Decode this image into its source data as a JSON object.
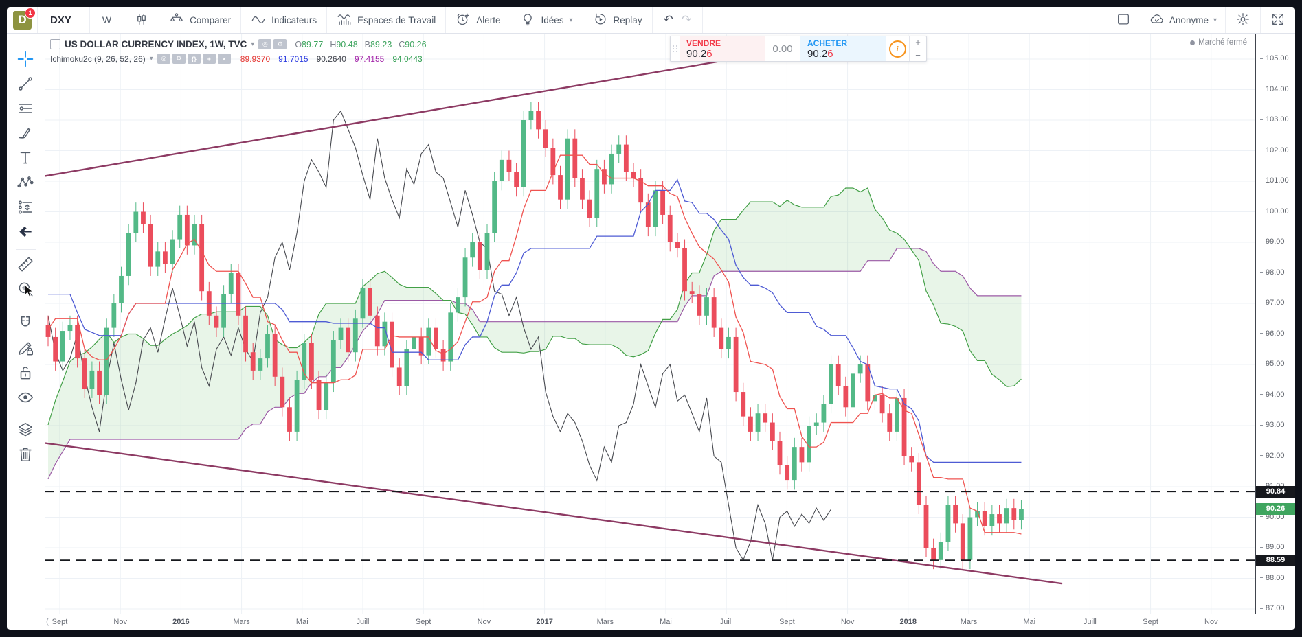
{
  "app": {
    "market_status": "Marché fermé",
    "topbar": {
      "logo_letter": "D",
      "notification_count": "1",
      "symbol": "DXY",
      "interval": "W",
      "menu": [
        {
          "id": "compare",
          "icon": "compare",
          "label": "Comparer"
        },
        {
          "id": "indicators",
          "icon": "indicators",
          "label": "Indicateurs"
        },
        {
          "id": "workspaces",
          "icon": "workspace",
          "label": "Espaces de Travail"
        },
        {
          "id": "alert",
          "icon": "alert",
          "label": "Alerte"
        },
        {
          "id": "ideas",
          "icon": "bulb",
          "label": "Idées",
          "chevron": true
        },
        {
          "id": "replay",
          "icon": "replay",
          "label": "Replay"
        }
      ],
      "undo_glyph": "↶",
      "redo_glyph": "↷",
      "account_name": "Anonyme",
      "account_chevron": "▾"
    },
    "left_toolbar": [
      {
        "id": "cursor-tool",
        "icon": "crosshair",
        "active": true
      },
      {
        "id": "trend-line-tool",
        "icon": "trend"
      },
      {
        "id": "gann-fib-tool",
        "icon": "fib"
      },
      {
        "id": "brush-tool",
        "icon": "brush"
      },
      {
        "id": "text-tool",
        "icon": "text"
      },
      {
        "id": "pattern-tool",
        "icon": "pattern"
      },
      {
        "id": "forecast-tool",
        "icon": "forecast"
      },
      {
        "id": "back-tool",
        "icon": "backarrow",
        "divider_after": true
      },
      {
        "id": "measure-tool",
        "icon": "ruler"
      },
      {
        "id": "zoom-in-tool",
        "icon": "zoomin",
        "gap_after": true
      },
      {
        "id": "magnet-tool",
        "icon": "magnet"
      },
      {
        "id": "drawing-lock-tool",
        "icon": "pencillock"
      },
      {
        "id": "lock-all-tool",
        "icon": "lock"
      },
      {
        "id": "hide-all-tool",
        "icon": "eye",
        "divider_after": true
      },
      {
        "id": "object-tree-tool",
        "icon": "layers"
      },
      {
        "id": "remove-tool",
        "icon": "trash"
      }
    ],
    "legend": {
      "collapse_glyph": "−",
      "title": "US DOLLAR CURRENCY INDEX, 1W, TVC",
      "caret": "▾",
      "buttons_row1": [
        "◎",
        "⚙"
      ],
      "buttons_row2": [
        "◎",
        "⚙",
        "{}",
        "+",
        "×"
      ],
      "ohlc": [
        {
          "k": "O",
          "v": "89.77"
        },
        {
          "k": "H",
          "v": "90.48"
        },
        {
          "k": "B",
          "v": "89.23"
        },
        {
          "k": "C",
          "v": "90.26"
        }
      ],
      "indicator": {
        "name": "Ichimoku2c (9, 26, 52, 26)",
        "values": [
          {
            "v": "89.9370",
            "color": "#e53935"
          },
          {
            "v": "91.7015",
            "color": "#2c3ce0"
          },
          {
            "v": "90.2640",
            "color": "#40434c"
          },
          {
            "v": "97.4155",
            "color": "#a426aa"
          },
          {
            "v": "94.0443",
            "color": "#2f9e4f"
          }
        ]
      }
    },
    "trade_panel": {
      "sell_label": "VENDRE",
      "sell_price_main": "90.2",
      "sell_price_last": "6",
      "spread": "0.00",
      "buy_label": "ACHETER",
      "buy_price_main": "90.2",
      "buy_price_last": "6",
      "info_glyph": "i",
      "plus": "+",
      "minus": "−"
    }
  },
  "chart_data": {
    "type": "candlestick+ichimoku",
    "title": "US DOLLAR CURRENCY INDEX (DXY), 1W, TVC",
    "ohlc_display": {
      "open": 89.77,
      "high": 90.48,
      "low": 89.23,
      "close": 90.26
    },
    "ichimoku_params": [
      9,
      26,
      52,
      26
    ],
    "ichimoku_values": {
      "tenkan": 89.937,
      "kijun": 91.7015,
      "chikou": 90.264,
      "senkou_b": 97.4155,
      "senkou_a": 94.0443
    },
    "price_axis": {
      "min": 87,
      "max": 105,
      "step": 1
    },
    "time_axis": [
      {
        "label": "Sept"
      },
      {
        "label": "Nov"
      },
      {
        "label": "2016",
        "bold": true
      },
      {
        "label": "Mars"
      },
      {
        "label": "Mai"
      },
      {
        "label": "Juill"
      },
      {
        "label": "Sept"
      },
      {
        "label": "Nov"
      },
      {
        "label": "2017",
        "bold": true
      },
      {
        "label": "Mars"
      },
      {
        "label": "Mai"
      },
      {
        "label": "Juill"
      },
      {
        "label": "Sept"
      },
      {
        "label": "Nov"
      },
      {
        "label": "2018",
        "bold": true
      },
      {
        "label": "Mars"
      },
      {
        "label": "Mai"
      },
      {
        "label": "Juill"
      },
      {
        "label": "Sept"
      },
      {
        "label": "Nov"
      }
    ],
    "levels": [
      {
        "price": 90.84,
        "label": "90.84"
      },
      {
        "price": 88.59,
        "label": "88.59"
      }
    ],
    "last_price": {
      "value": 90.26,
      "label": "90.26",
      "color": "#3fa55f"
    },
    "trendlines": [
      {
        "x1_bar": -1.4,
        "y1_price": 101.13,
        "x2_bar": 109.1,
        "y2_price": 105.63
      },
      {
        "x1_bar": -1.4,
        "y1_price": 92.46,
        "x2_bar": 138.5,
        "y2_price": 87.83
      }
    ],
    "candles": {
      "interval": "1W",
      "wick": 0.3,
      "hidden_history": 52,
      "up_color": "#53b987",
      "down_color": "#eb4d5c",
      "closes": [
        84.9,
        85.6,
        86.2,
        85.9,
        86.7,
        87.4,
        87.0,
        87.6,
        88.1,
        87.9,
        88.6,
        89.3,
        89.0,
        90.0,
        89.6,
        90.3,
        91.1,
        92.0,
        92.5,
        93.1,
        94.2,
        94.8,
        94.1,
        94.9,
        95.3,
        96.6,
        97.6,
        98.6,
        99.4,
        100.2,
        99.0,
        98.1,
        97.3,
        96.8,
        95.9,
        94.6,
        95.3,
        96.2,
        96.9,
        97.4,
        96.4,
        95.6,
        95.1,
        94.4,
        95.5,
        96.4,
        97.2,
        97.9,
        96.8,
        95.8,
        96.1,
        96.3,
        95.9,
        95.1,
        96.1,
        96.3,
        95.2,
        94.2,
        94.8,
        94.0,
        96.2,
        97.0,
        97.9,
        99.3,
        100.0,
        99.6,
        98.2,
        98.7,
        98.3,
        99.1,
        99.9,
        98.9,
        99.6,
        97.4,
        96.6,
        96.2,
        97.3,
        98.0,
        96.6,
        95.4,
        94.8,
        95.2,
        96.0,
        94.6,
        93.6,
        92.8,
        94.5,
        95.7,
        94.5,
        93.5,
        94.4,
        95.8,
        96.2,
        95.4,
        96.5,
        97.5,
        96.6,
        95.6,
        96.4,
        94.9,
        94.3,
        95.5,
        95.9,
        95.3,
        96.2,
        95.5,
        95.1,
        96.7,
        97.2,
        98.5,
        99.0,
        98.1,
        99.3,
        101.0,
        101.7,
        101.3,
        100.8,
        103.0,
        103.3,
        102.7,
        102.1,
        101.2,
        100.4,
        102.4,
        101.1,
        100.4,
        99.8,
        101.4,
        100.9,
        101.9,
        102.2,
        101.3,
        101.1,
        100.3,
        99.5,
        100.7,
        99.9,
        99.0,
        98.8,
        97.4,
        97.3,
        96.6,
        97.2,
        96.2,
        95.5,
        95.9,
        94.1,
        93.3,
        92.8,
        93.4,
        93.1,
        92.5,
        91.7,
        91.2,
        92.3,
        91.8,
        93.0,
        93.1,
        93.7,
        95.0,
        94.3,
        93.6,
        94.7,
        95.0,
        93.8,
        94.0,
        93.4,
        92.8,
        93.9,
        92.0,
        91.8,
        90.4,
        89.0,
        88.6,
        89.2,
        90.4,
        89.8,
        88.6,
        90.0,
        90.2,
        89.7,
        90.1,
        89.8,
        90.3,
        89.9,
        90.26
      ]
    },
    "style": {
      "tenkan": "#ef5350",
      "kijun": "#4e5bd4",
      "chikou": "#47494f",
      "senkou_a": "#43a047",
      "senkou_b": "#9b59a5",
      "cloud_fill": "rgba(76,175,80,0.13)",
      "trendline": "#8d3a63",
      "level_color": "#16181d",
      "grid": "#edf1f6"
    }
  }
}
